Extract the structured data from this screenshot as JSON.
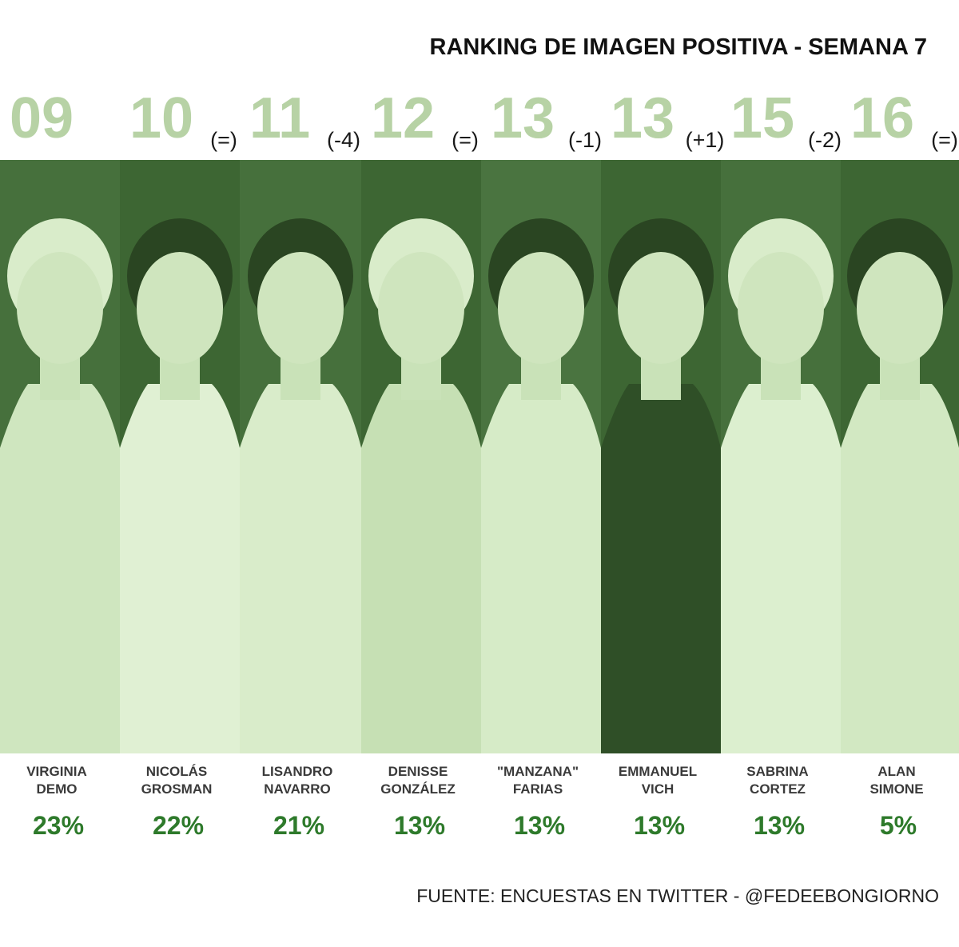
{
  "header": {
    "title": "RANKING DE IMAGEN POSITIVA - SEMANA 7"
  },
  "ranking": [
    {
      "position": "09",
      "change": null,
      "name": [
        "VIRGINIA",
        "DEMO"
      ],
      "percent": "23%"
    },
    {
      "position": "10",
      "change": "(=)",
      "name": [
        "NICOLÁS",
        "GROSMAN"
      ],
      "percent": "22%"
    },
    {
      "position": "11",
      "change": "(-4)",
      "name": [
        "LISANDRO",
        "NAVARRO"
      ],
      "percent": "21%"
    },
    {
      "position": "12",
      "change": "(=)",
      "name": [
        "DENISSE",
        "GONZÁLEZ"
      ],
      "percent": "13%"
    },
    {
      "position": "13",
      "change": "(-1)",
      "name": [
        "\"MANZANA\"",
        "FARIAS"
      ],
      "percent": "13%"
    },
    {
      "position": "13",
      "change": "(+1)",
      "name": [
        "EMMANUEL",
        "VICH"
      ],
      "percent": "13%"
    },
    {
      "position": "15",
      "change": "(-2)",
      "name": [
        "SABRINA",
        "CORTEZ"
      ],
      "percent": "13%"
    },
    {
      "position": "16",
      "change": "(=)",
      "name": [
        "ALAN",
        "SIMONE"
      ],
      "percent": "5%"
    }
  ],
  "footer": {
    "source": "FUENTE: ENCUESTAS EN TWITTER - @FEDEEBONGIORNO"
  }
}
